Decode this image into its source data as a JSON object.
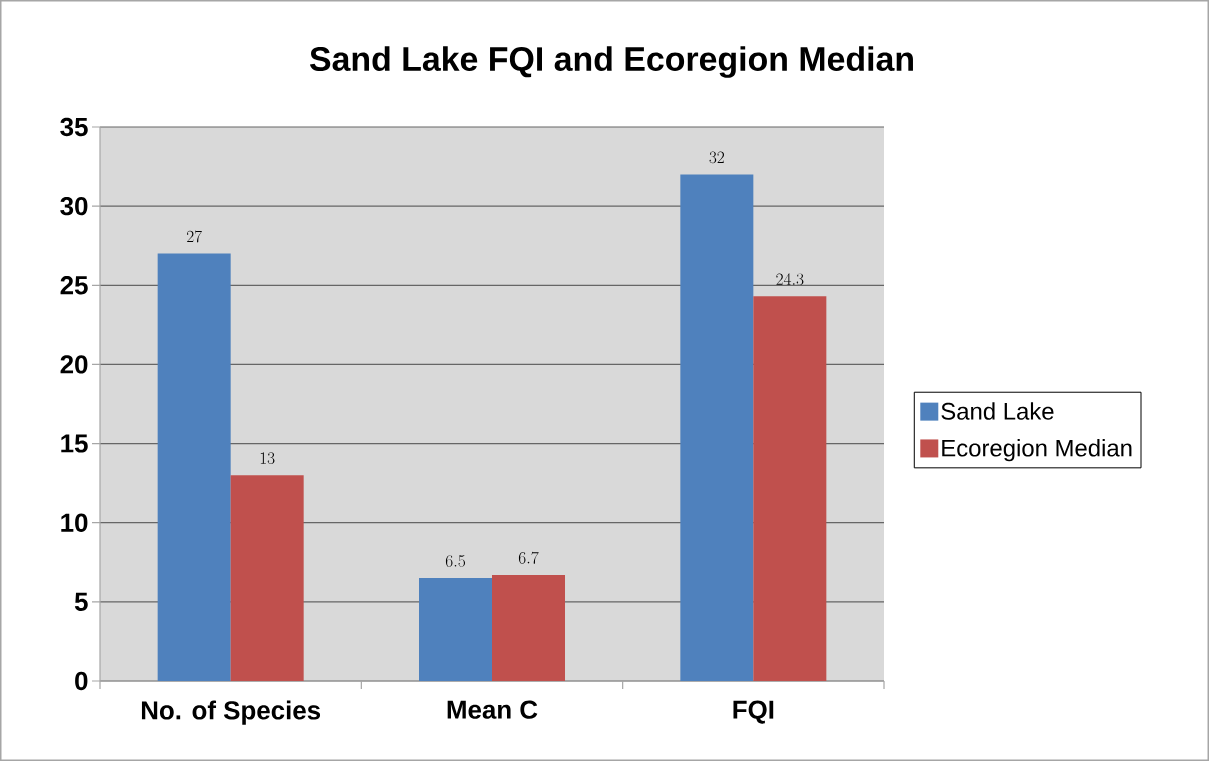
{
  "chart_data": {
    "type": "bar",
    "title": "Sand Lake FQI and Ecoregion Median",
    "categories": [
      "No. of Species",
      "Mean C",
      "FQI"
    ],
    "series": [
      {
        "name": "Sand Lake",
        "color": "#4f81bd",
        "values": [
          27,
          6.5,
          32
        ]
      },
      {
        "name": "Ecoregion Median",
        "color": "#c0504d",
        "values": [
          13,
          6.7,
          24.3
        ]
      }
    ],
    "ylim": [
      0,
      35
    ],
    "yticks": [
      0,
      5,
      10,
      15,
      20,
      25,
      30,
      35
    ],
    "grid": "y",
    "legend": "right",
    "data_labels": true
  }
}
